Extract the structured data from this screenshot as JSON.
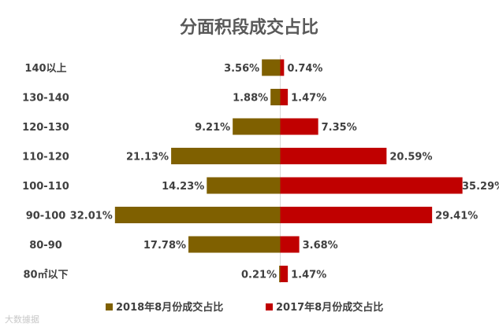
{
  "chart_data": {
    "type": "bar",
    "orientation": "horizontal-diverging",
    "title": "分面积段成交占比",
    "categories": [
      "140以上",
      "130-140",
      "120-130",
      "110-120",
      "100-110",
      "90-100",
      "80-90",
      "80㎡以下"
    ],
    "series": [
      {
        "name": "2018年8月份成交占比",
        "color": "#7f6000",
        "values": [
          3.56,
          1.88,
          9.21,
          21.13,
          14.23,
          32.01,
          17.78,
          0.21
        ],
        "labels": [
          "3.56%",
          "1.88%",
          "9.21%",
          "21.13%",
          "14.23%",
          "32.01%",
          "17.78%",
          "0.21%"
        ]
      },
      {
        "name": "2017年8月份成交占比",
        "color": "#c00000",
        "values": [
          0.74,
          1.47,
          7.35,
          20.59,
          35.29,
          29.41,
          3.68,
          1.47
        ],
        "labels": [
          "0.74%",
          "1.47%",
          "7.35%",
          "20.59%",
          "35.29%",
          "29.41%",
          "3.68%",
          "1.47%"
        ]
      }
    ],
    "legend_position": "bottom",
    "grid": false
  },
  "watermark": "大数據据"
}
